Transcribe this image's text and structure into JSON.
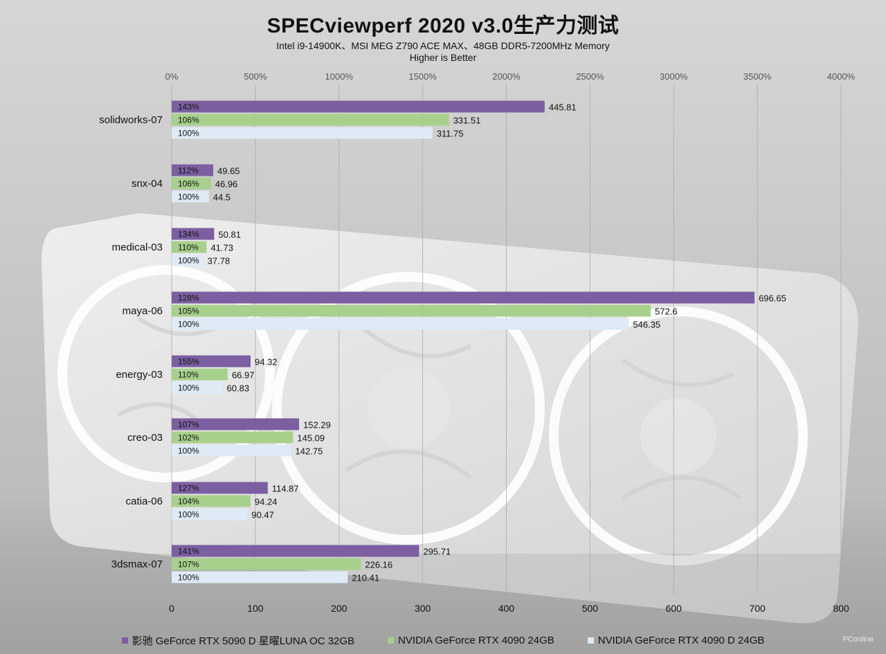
{
  "chart_data": {
    "type": "bar",
    "orientation": "horizontal",
    "title": "SPECviewperf 2020 v3.0生产力测试",
    "subtitle": "Intel i9-14900K、MSI MEG Z790 ACE MAX、48GB DDR5-7200MHz Memory",
    "subtitle2": "Higher is Better",
    "categories": [
      "solidworks-07",
      "snx-04",
      "medical-03",
      "maya-06",
      "energy-03",
      "creo-03",
      "catia-06",
      "3dsmax-07"
    ],
    "series": [
      {
        "name": "影驰 GeForce RTX 5090 D 星曜LUNA OC 32GB",
        "color": "#7b5fa0",
        "values": [
          445.81,
          49.65,
          50.81,
          696.65,
          94.32,
          152.29,
          114.87,
          295.71
        ],
        "percent_labels": [
          "143%",
          "112%",
          "134%",
          "128%",
          "155%",
          "107%",
          "127%",
          "141%"
        ],
        "value_labels": [
          "445.81",
          "49.65",
          "50.81",
          "696.65",
          "94.32",
          "152.29",
          "114.87",
          "295.71"
        ]
      },
      {
        "name": "NVIDIA GeForce RTX 4090 24GB",
        "color": "#a8d08d",
        "values": [
          331.51,
          46.96,
          41.73,
          572.6,
          66.97,
          145.09,
          94.24,
          226.16
        ],
        "percent_labels": [
          "106%",
          "106%",
          "110%",
          "105%",
          "110%",
          "102%",
          "104%",
          "107%"
        ],
        "value_labels": [
          "331.51",
          "46.96",
          "41.73",
          "572.6",
          "66.97",
          "145.09",
          "94.24",
          "226.16"
        ]
      },
      {
        "name": "NVIDIA GeForce RTX 4090 D 24GB",
        "color": "#deeaf6",
        "values": [
          311.75,
          44.5,
          37.78,
          546.35,
          60.83,
          142.75,
          90.47,
          210.41
        ],
        "percent_labels": [
          "100%",
          "100%",
          "100%",
          "100%",
          "100%",
          "100%",
          "100%",
          "100%"
        ],
        "value_labels": [
          "311.75",
          "44.5",
          "37.78",
          "546.35",
          "60.83",
          "142.75",
          "90.47",
          "210.41"
        ]
      }
    ],
    "x_bottom_ticks": [
      "0",
      "100",
      "200",
      "300",
      "400",
      "500",
      "600",
      "700",
      "800"
    ],
    "xlim": [
      0,
      800
    ],
    "x_top_ticks": [
      "0%",
      "500%",
      "1000%",
      "1500%",
      "2000%",
      "2500%",
      "3000%",
      "3500%",
      "4000%"
    ],
    "x_top_lim": [
      0,
      4000
    ],
    "grid": true,
    "legend_position": "bottom"
  },
  "watermark": "PConline"
}
